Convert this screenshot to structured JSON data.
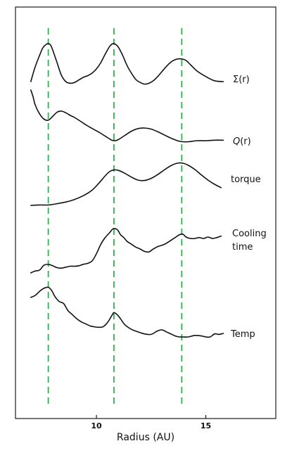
{
  "chart_data": {
    "type": "line",
    "title": "",
    "xlabel": "Radius (AU)",
    "ylabel": "",
    "xlim": [
      6.3,
      18.2
    ],
    "xticks": [
      10,
      15
    ],
    "grid": false,
    "legend": "inline-right",
    "guide_color": "#2db34a",
    "line_color": "#111111",
    "vlines": [
      7.8,
      10.8,
      13.9
    ],
    "series": [
      {
        "name": "Σ(r)",
        "name_prefix": "Σ",
        "name_italic": "",
        "name_suffix": "(r)",
        "x": [
          7.0,
          7.2,
          7.4,
          7.55,
          7.7,
          7.8,
          7.9,
          8.0,
          8.2,
          8.4,
          8.6,
          8.8,
          9.0,
          9.2,
          9.4,
          9.6,
          9.8,
          10.0,
          10.2,
          10.4,
          10.6,
          10.75,
          10.85,
          11.0,
          11.2,
          11.4,
          11.6,
          11.8,
          12.0,
          12.2,
          12.4,
          12.6,
          12.8,
          13.0,
          13.2,
          13.4,
          13.6,
          13.8,
          13.95,
          14.1,
          14.3,
          14.6,
          15.0,
          15.4,
          15.8
        ],
        "y": [
          0.1,
          0.45,
          0.72,
          0.9,
          0.98,
          1.0,
          0.97,
          0.85,
          0.55,
          0.25,
          0.1,
          0.06,
          0.08,
          0.14,
          0.2,
          0.24,
          0.3,
          0.4,
          0.55,
          0.75,
          0.93,
          1.0,
          0.99,
          0.92,
          0.72,
          0.48,
          0.3,
          0.15,
          0.08,
          0.04,
          0.06,
          0.12,
          0.22,
          0.34,
          0.46,
          0.56,
          0.62,
          0.64,
          0.63,
          0.6,
          0.5,
          0.35,
          0.22,
          0.12,
          0.1
        ]
      },
      {
        "name": "Q(r)",
        "name_prefix": "",
        "name_italic": "Q",
        "name_suffix": "(r)",
        "x": [
          7.0,
          7.1,
          7.2,
          7.4,
          7.6,
          7.8,
          8.0,
          8.2,
          8.4,
          8.6,
          8.8,
          9.0,
          9.3,
          9.6,
          9.9,
          10.2,
          10.5,
          10.7,
          10.85,
          11.0,
          11.3,
          11.6,
          11.9,
          12.2,
          12.5,
          12.8,
          13.1,
          13.4,
          13.7,
          13.95,
          14.2,
          14.6,
          15.0,
          15.4,
          15.8
        ],
        "y": [
          1.0,
          0.88,
          0.72,
          0.55,
          0.45,
          0.43,
          0.5,
          0.58,
          0.6,
          0.57,
          0.52,
          0.48,
          0.4,
          0.32,
          0.25,
          0.18,
          0.1,
          0.05,
          0.04,
          0.06,
          0.14,
          0.22,
          0.27,
          0.28,
          0.26,
          0.21,
          0.15,
          0.09,
          0.04,
          0.02,
          0.02,
          0.04,
          0.04,
          0.05,
          0.05
        ]
      },
      {
        "name": "torque",
        "name_prefix": "torque",
        "name_italic": "",
        "name_suffix": "",
        "x": [
          7.0,
          7.4,
          7.8,
          8.2,
          8.6,
          9.0,
          9.4,
          9.8,
          10.1,
          10.4,
          10.6,
          10.8,
          11.0,
          11.3,
          11.6,
          11.9,
          12.2,
          12.5,
          12.8,
          13.1,
          13.4,
          13.7,
          13.95,
          14.2,
          14.5,
          14.8,
          15.1,
          15.4,
          15.7
        ],
        "y": [
          0.0,
          0.01,
          0.01,
          0.04,
          0.08,
          0.14,
          0.23,
          0.36,
          0.52,
          0.7,
          0.8,
          0.84,
          0.83,
          0.76,
          0.67,
          0.6,
          0.59,
          0.64,
          0.73,
          0.84,
          0.94,
          1.0,
          1.0,
          0.95,
          0.85,
          0.72,
          0.6,
          0.5,
          0.42
        ]
      },
      {
        "name": "Cooling time",
        "name_prefix": "Cooling",
        "name_line2": "time",
        "name_italic": "",
        "name_suffix": "",
        "x": [
          7.0,
          7.2,
          7.4,
          7.6,
          7.8,
          8.0,
          8.2,
          8.4,
          8.6,
          8.8,
          9.0,
          9.2,
          9.4,
          9.6,
          9.8,
          10.0,
          10.2,
          10.4,
          10.6,
          10.75,
          10.9,
          11.0,
          11.1,
          11.25,
          11.4,
          11.6,
          11.8,
          12.0,
          12.2,
          12.4,
          12.6,
          12.8,
          13.0,
          13.2,
          13.4,
          13.6,
          13.8,
          13.95,
          14.1,
          14.3,
          14.5,
          14.7,
          14.9,
          15.1,
          15.3,
          15.5,
          15.7
        ],
        "y": [
          0.0,
          0.04,
          0.06,
          0.16,
          0.18,
          0.15,
          0.11,
          0.1,
          0.12,
          0.14,
          0.14,
          0.15,
          0.18,
          0.2,
          0.25,
          0.4,
          0.6,
          0.74,
          0.84,
          0.92,
          0.92,
          0.88,
          0.8,
          0.74,
          0.66,
          0.6,
          0.54,
          0.5,
          0.45,
          0.44,
          0.5,
          0.55,
          0.58,
          0.62,
          0.68,
          0.74,
          0.8,
          0.81,
          0.75,
          0.72,
          0.72,
          0.74,
          0.72,
          0.75,
          0.72,
          0.74,
          0.77
        ]
      },
      {
        "name": "Temp",
        "name_prefix": "Temp",
        "name_italic": "",
        "name_suffix": "",
        "x": [
          7.0,
          7.2,
          7.4,
          7.6,
          7.8,
          7.95,
          8.1,
          8.3,
          8.5,
          8.7,
          8.9,
          9.1,
          9.3,
          9.5,
          9.7,
          9.9,
          10.1,
          10.3,
          10.5,
          10.7,
          10.8,
          10.95,
          11.1,
          11.3,
          11.6,
          11.9,
          12.2,
          12.5,
          12.8,
          13.0,
          13.2,
          13.4,
          13.6,
          13.8,
          13.95,
          14.2,
          14.5,
          14.8,
          15.0,
          15.2,
          15.4,
          15.6,
          15.8
        ],
        "y": [
          0.78,
          0.82,
          0.9,
          0.96,
          0.98,
          0.92,
          0.8,
          0.7,
          0.66,
          0.52,
          0.44,
          0.36,
          0.3,
          0.26,
          0.22,
          0.2,
          0.19,
          0.2,
          0.28,
          0.42,
          0.48,
          0.44,
          0.36,
          0.24,
          0.15,
          0.1,
          0.06,
          0.05,
          0.12,
          0.14,
          0.1,
          0.06,
          0.02,
          0.0,
          0.0,
          0.0,
          0.03,
          0.02,
          0.0,
          0.0,
          0.06,
          0.05,
          0.07
        ]
      }
    ]
  }
}
